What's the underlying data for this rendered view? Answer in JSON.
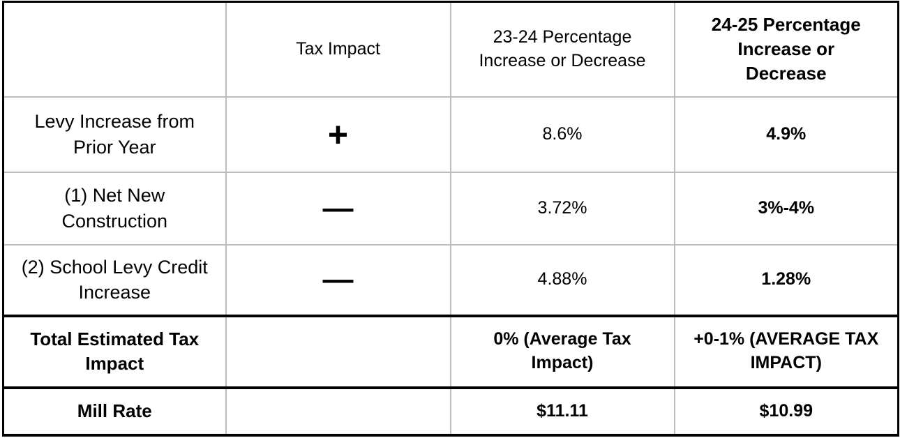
{
  "headers": [
    "",
    "Tax Impact",
    "23-24 Percentage Increase or Decrease",
    "24-25 Percentage Increase or Decrease"
  ],
  "rows": [
    {
      "label": "Levy Increase from Prior Year",
      "impact_icon": "plus-icon",
      "impact": "+",
      "y2324": "8.6%",
      "y2425": "4.9%"
    },
    {
      "label": "(1) Net New Construction",
      "impact_icon": "minus-icon",
      "impact": "—",
      "y2324": "3.72%",
      "y2425": "3%-4%"
    },
    {
      "label": "(2) School Levy Credit Increase",
      "impact_icon": "minus-icon",
      "impact": "—",
      "y2324": "4.88%",
      "y2425": "1.28%"
    }
  ],
  "total": {
    "label": "Total Estimated Tax Impact",
    "impact": "",
    "y2324": "0% (Average Tax Impact)",
    "y2425": "+0-1% (AVERAGE TAX IMPACT)"
  },
  "mill_rate": {
    "label": "Mill Rate",
    "impact": "",
    "y2324": "$11.11",
    "y2425": "$10.99"
  }
}
